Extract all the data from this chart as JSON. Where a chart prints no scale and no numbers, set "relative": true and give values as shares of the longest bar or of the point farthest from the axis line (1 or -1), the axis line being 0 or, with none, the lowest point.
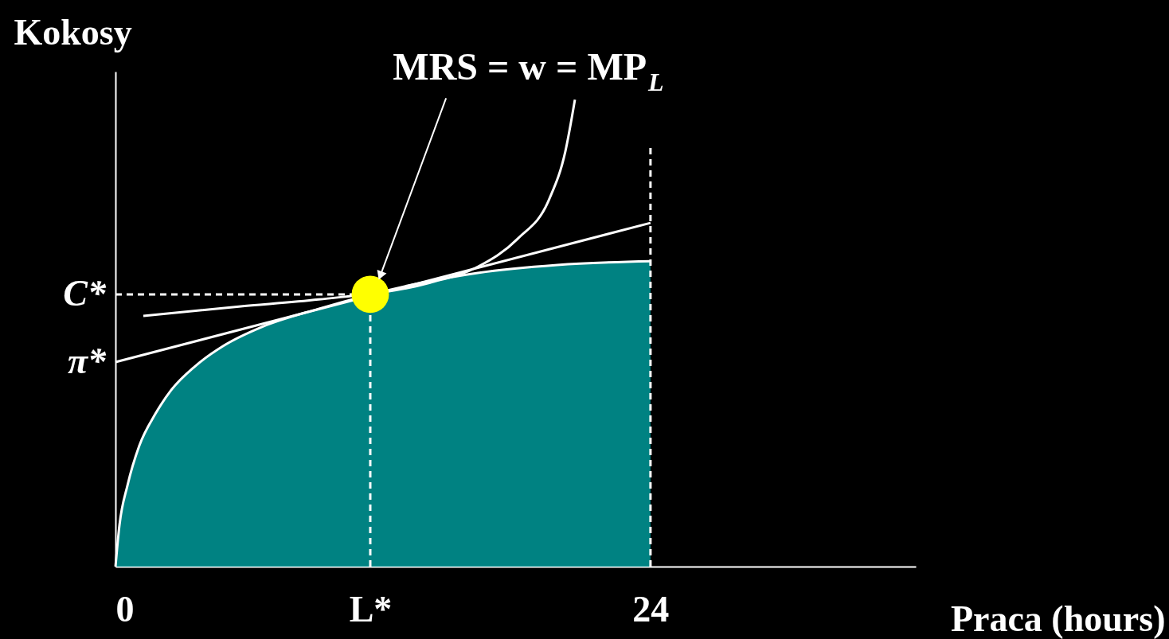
{
  "chart_data": {
    "type": "line",
    "relative": true,
    "xlabel": "Praca (hours)",
    "ylabel": "Kokosy",
    "xlim": [
      0,
      35.9
    ],
    "xticks": [
      0,
      {
        "value": 11.43,
        "label": "L*"
      },
      24
    ],
    "series": [
      {
        "type": "area",
        "color": "#009999",
        "x": [
          0,
          0.18,
          0.54,
          1.07,
          1.79,
          2.5,
          3.57,
          4.82,
          6.61,
          9.11,
          13.75,
          16.25,
          19.82,
          24
        ],
        "values": [
          0,
          0.089,
          0.174,
          0.259,
          0.327,
          0.378,
          0.429,
          0.472,
          0.514,
          0.552,
          0.608,
          0.629,
          0.646,
          0.654
        ]
      },
      {
        "type": "line",
        "color": "#ffffff",
        "x": [
          0,
          24
        ],
        "values": [
          0.438,
          0.736
        ]
      },
      {
        "type": "line",
        "color": "#ffffff",
        "x": [
          1.25,
          5.54,
          9.11,
          14.11,
          16.25,
          18.04,
          19.46,
          20.18,
          20.61
        ],
        "values": [
          0.537,
          0.557,
          0.572,
          0.608,
          0.642,
          0.702,
          0.787,
          0.889,
          1
        ]
      },
      {
        "type": "line",
        "color": "#ffffff",
        "line_style": "dashed",
        "x": [
          0,
          10.64
        ],
        "values": [
          0.583,
          0.583
        ]
      },
      {
        "type": "line",
        "color": "#ffffff",
        "line_style": "dashed",
        "x": [
          11.43,
          11.43
        ],
        "values": [
          0,
          0.54
        ]
      },
      {
        "type": "line",
        "color": "#ffffff",
        "line_style": "dashed",
        "x": [
          24,
          24
        ],
        "values": [
          0,
          0.898
        ]
      },
      {
        "type": "scatter",
        "color": "#ffff00",
        "x": [
          11.43
        ],
        "values": [
          0.583
        ]
      }
    ],
    "annotations": [
      "MRS = w = MP$_{L}$",
      {
        "text": "C*",
        "x": 0,
        "y": 0.583
      },
      {
        "text": "π*",
        "x": 0,
        "y": 0.438
      }
    ]
  }
}
